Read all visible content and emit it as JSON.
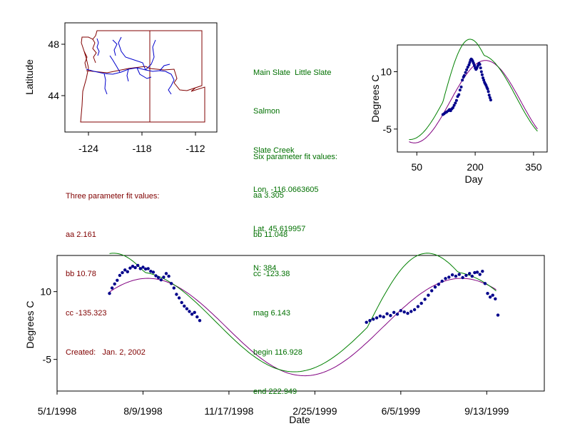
{
  "map": {
    "ylabel": "Latitude",
    "y_ticks": [
      "48",
      "44"
    ],
    "x_ticks": [
      "-124",
      "-118",
      "-112"
    ],
    "colors": {
      "borders": "#800000",
      "rivers": "#0000cc"
    }
  },
  "station_info": {
    "lines": [
      "Main Slate  Little Slate",
      "Salmon",
      "Slate Creek",
      "Lon. -116.0663605",
      "Lat. 45.619957",
      "N: 384"
    ]
  },
  "six_param": {
    "lines": [
      "Six parameter fit values:",
      "aa 3.305",
      "bb 11.048",
      "cc -123.38",
      "mag 6.143",
      "begin 116.928",
      "end 222.949"
    ]
  },
  "three_param": {
    "lines": [
      "Three parameter fit values:",
      "aa 2.161",
      "bb 10.78",
      "cc -135.323",
      "Created:   Jan. 2, 2002"
    ]
  },
  "chart_data": [
    {
      "type": "scatter",
      "xlabel": "Day",
      "ylabel": "Degrees C",
      "x_ticks": [
        50,
        200,
        350
      ],
      "y_ticks": [
        10,
        -5
      ],
      "xlim": [
        0,
        385
      ],
      "ylim": [
        -11,
        17
      ],
      "colors": {
        "points": "#00008b",
        "three_param": "#800080",
        "six_param": "#008000"
      },
      "three_param_fit": {
        "aa": 2.161,
        "bb": 10.78,
        "cc": -135.323
      },
      "six_param_fit": {
        "aa": 3.305,
        "bb": 11.048,
        "cc": -123.38,
        "mag": 6.143,
        "begin": 116.928,
        "end": 222.949
      },
      "series": [
        {
          "name": "",
          "x": [
            117,
            120,
            124,
            127,
            131,
            134,
            137,
            140,
            143,
            146,
            149,
            152,
            155,
            158,
            161,
            164,
            167,
            170,
            172,
            175,
            178,
            181,
            184,
            186,
            188,
            190,
            192,
            194,
            196,
            198,
            200,
            202,
            204,
            206,
            208,
            210,
            212,
            214,
            216,
            218,
            220,
            222,
            224,
            226,
            228,
            230,
            232,
            234,
            236,
            238,
            240
          ],
          "y": [
            -1.2,
            -1.0,
            -0.7,
            -0.5,
            -0.2,
            0.1,
            -0.2,
            0.3,
            0.6,
            1.2,
            1.8,
            2.5,
            3.5,
            4.0,
            5.2,
            6.0,
            7.8,
            8.6,
            9.0,
            9.8,
            10.5,
            11.2,
            11.8,
            12.4,
            13.0,
            13.3,
            13.1,
            12.7,
            12.2,
            11.6,
            11.0,
            10.6,
            10.9,
            11.4,
            11.8,
            12.2,
            11.9,
            11.0,
            10.0,
            9.2,
            8.4,
            7.8,
            7.2,
            6.8,
            6.4,
            5.9,
            5.5,
            4.8,
            3.9,
            3.2,
            2.6
          ]
        }
      ]
    },
    {
      "type": "scatter",
      "xlabel": "Date",
      "ylabel": "Degrees C",
      "x_ticks": [
        "5/1/1998",
        "8/9/1998",
        "11/17/1998",
        "2/25/1999",
        "6/5/1999",
        "9/13/1999"
      ],
      "y_ticks": [
        10,
        -5
      ],
      "xlim": [
        "5/1/1998",
        "11/19/1999"
      ],
      "ylim": [
        -12,
        18
      ],
      "colors": {
        "points": "#00008b",
        "three_param": "#800080",
        "six_param": "#008000"
      },
      "series": [
        {
          "name": "",
          "x": [
            "7/1/1998",
            "7/4/1998",
            "7/7/1998",
            "7/10/1998",
            "7/13/1998",
            "7/16/1998",
            "7/19/1998",
            "7/22/1998",
            "7/25/1998",
            "7/28/1998",
            "7/31/1998",
            "8/3/1998",
            "8/6/1998",
            "8/9/1998",
            "8/12/1998",
            "8/15/1998",
            "8/18/1998",
            "8/21/1998",
            "8/24/1998",
            "8/27/1998",
            "8/30/1998",
            "9/2/1998",
            "9/5/1998",
            "9/8/1998",
            "9/11/1998",
            "9/14/1998",
            "9/17/1998",
            "9/20/1998",
            "9/23/1998",
            "9/26/1998",
            "9/29/1998",
            "10/2/1998",
            "10/5/1998",
            "10/8/1998",
            "10/11/1998",
            "10/14/1998",
            "4/26/1999",
            "4/30/1999",
            "5/4/1999",
            "5/8/1999",
            "5/12/1999",
            "5/16/1999",
            "5/20/1999",
            "5/24/1999",
            "5/28/1999",
            "6/1/1999",
            "6/5/1999",
            "6/9/1999",
            "6/13/1999",
            "6/17/1999",
            "6/21/1999",
            "6/25/1999",
            "6/29/1999",
            "7/3/1999",
            "7/7/1999",
            "7/11/1999",
            "7/15/1999",
            "7/19/1999",
            "7/23/1999",
            "7/27/1999",
            "7/31/1999",
            "8/4/1999",
            "8/8/1999",
            "8/12/1999",
            "8/16/1999",
            "8/20/1999",
            "8/24/1999",
            "8/27/1999",
            "8/30/1999",
            "9/2/1999",
            "9/5/1999",
            "9/8/1999",
            "9/11/1999",
            "9/14/1999",
            "9/17/1999",
            "9/20/1999",
            "9/23/1999",
            "9/26/1999"
          ],
          "y": [
            9.6,
            10.8,
            11.7,
            12.5,
            13.6,
            14.2,
            14.8,
            14.4,
            15.2,
            15.6,
            15.3,
            15.8,
            15.1,
            15.4,
            15.0,
            15.1,
            14.5,
            14.3,
            13.5,
            13.1,
            12.6,
            13.2,
            14.0,
            13.4,
            11.8,
            10.8,
            9.4,
            8.6,
            7.6,
            6.8,
            6.2,
            5.6,
            5.0,
            5.4,
            4.4,
            3.6,
            3.2,
            3.6,
            3.9,
            4.2,
            4.6,
            4.4,
            5.1,
            4.7,
            5.4,
            5.0,
            5.8,
            5.5,
            5.2,
            5.6,
            6.0,
            6.7,
            7.4,
            8.3,
            9.2,
            10.2,
            11.0,
            11.6,
            12.3,
            12.9,
            13.2,
            13.7,
            13.4,
            13.8,
            13.1,
            13.6,
            14.0,
            13.4,
            14.2,
            14.3,
            13.8,
            14.5,
            11.8,
            9.6,
            8.8,
            9.2,
            8.4,
            4.8
          ]
        }
      ]
    }
  ]
}
